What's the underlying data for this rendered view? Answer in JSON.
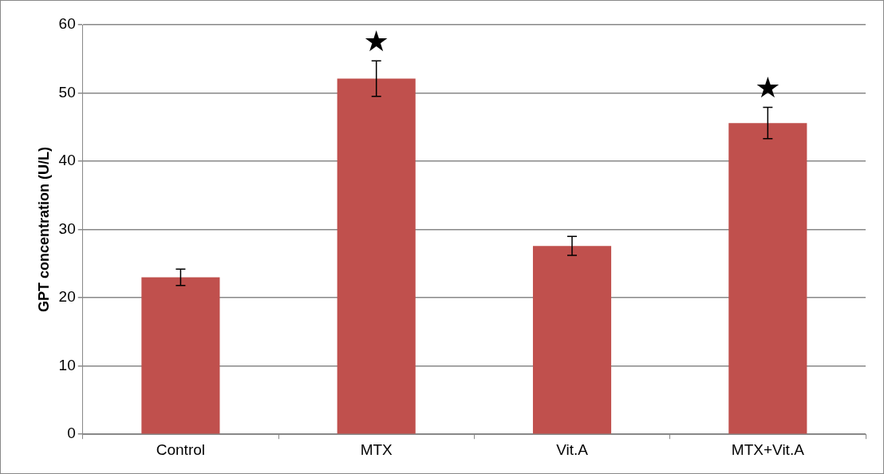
{
  "chart_data": {
    "type": "bar",
    "ylabel": "GPT concentration (U/L)",
    "categories": [
      "Control",
      "MTX",
      "Vit.A",
      "MTX+Vit.A"
    ],
    "values": [
      23.0,
      52.1,
      27.6,
      45.6
    ],
    "errors": [
      1.2,
      2.6,
      1.4,
      2.3
    ],
    "color": "#c0504d",
    "ylim": [
      0,
      60
    ],
    "yticks": [
      0,
      10,
      20,
      30,
      40,
      50,
      60
    ],
    "grid": "y",
    "value_labels": [
      null,
      "★",
      null,
      "★"
    ]
  }
}
